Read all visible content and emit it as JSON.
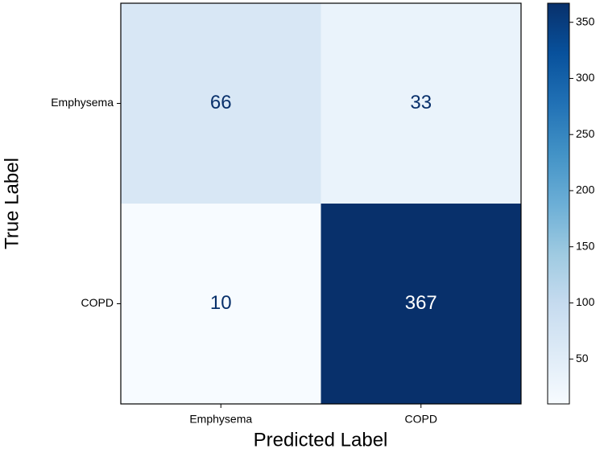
{
  "chart_data": {
    "type": "heatmap",
    "x_categories": [
      "Emphysema",
      "COPD"
    ],
    "y_categories": [
      "Emphysema",
      "COPD"
    ],
    "values": [
      [
        66,
        33
      ],
      [
        10,
        367
      ]
    ],
    "xlabel": "Predicted Label",
    "ylabel": "True Label",
    "colormap": [
      "#f7fbff",
      "#deebf7",
      "#c6dbef",
      "#9ecae1",
      "#6baed6",
      "#4292c6",
      "#2171b5",
      "#08519c",
      "#08306b"
    ],
    "clim": [
      10,
      367
    ],
    "cticks": [
      50,
      100,
      150,
      200,
      250,
      300,
      350
    ]
  }
}
